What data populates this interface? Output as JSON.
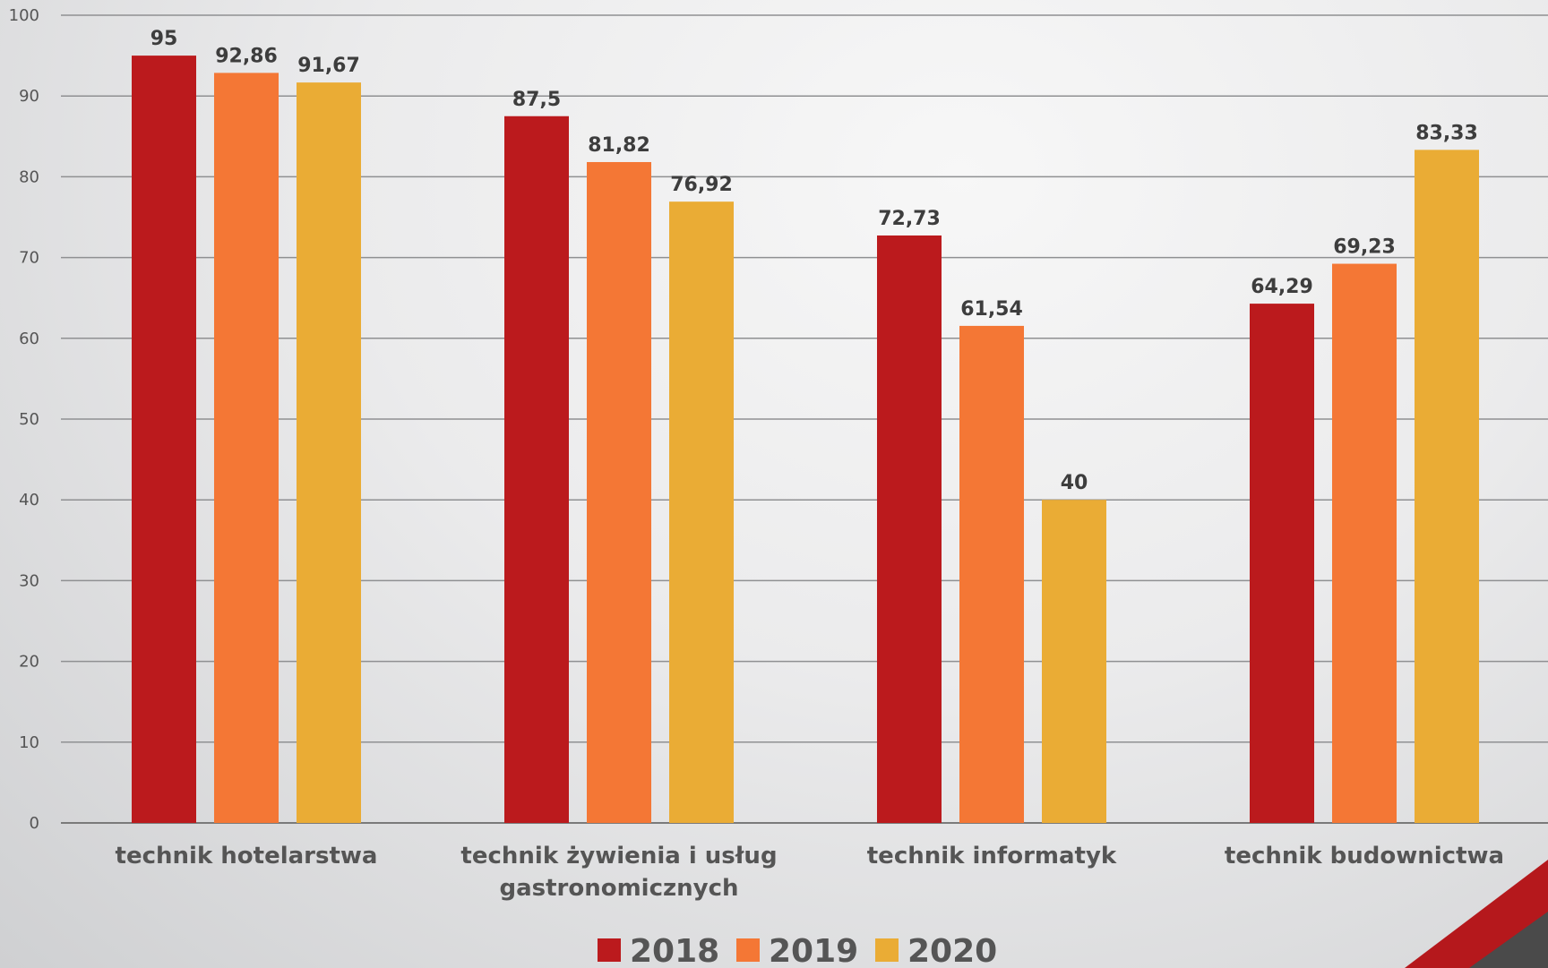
{
  "chart_data": {
    "type": "bar",
    "categories": [
      [
        "technik hotelarstwa"
      ],
      [
        "technik żywienia i usług",
        "gastronomicznych"
      ],
      [
        "technik informatyk"
      ],
      [
        "technik budownictwa"
      ]
    ],
    "series": [
      {
        "name": "2018",
        "color": "#bb1a1d",
        "values": [
          95,
          87.5,
          72.73,
          64.29
        ],
        "labels": [
          "95",
          "87,5",
          "72,73",
          "64,29"
        ]
      },
      {
        "name": "2019",
        "color": "#f47735",
        "values": [
          92.86,
          81.82,
          61.54,
          69.23
        ],
        "labels": [
          "92,86",
          "81,82",
          "61,54",
          "69,23"
        ]
      },
      {
        "name": "2020",
        "color": "#eaac35",
        "values": [
          91.67,
          76.92,
          40,
          83.33
        ],
        "labels": [
          "91,67",
          "76,92",
          "40",
          "83,33"
        ]
      }
    ],
    "ylim": [
      0,
      100
    ],
    "yticks": [
      0,
      10,
      20,
      30,
      40,
      50,
      60,
      70,
      80,
      90,
      100
    ],
    "grid": true,
    "legend": "bottom",
    "title": "",
    "xlabel": "",
    "ylabel": ""
  },
  "decoration": {
    "corner_accent_colors": [
      "#b5181c",
      "#4a4a4a"
    ]
  }
}
